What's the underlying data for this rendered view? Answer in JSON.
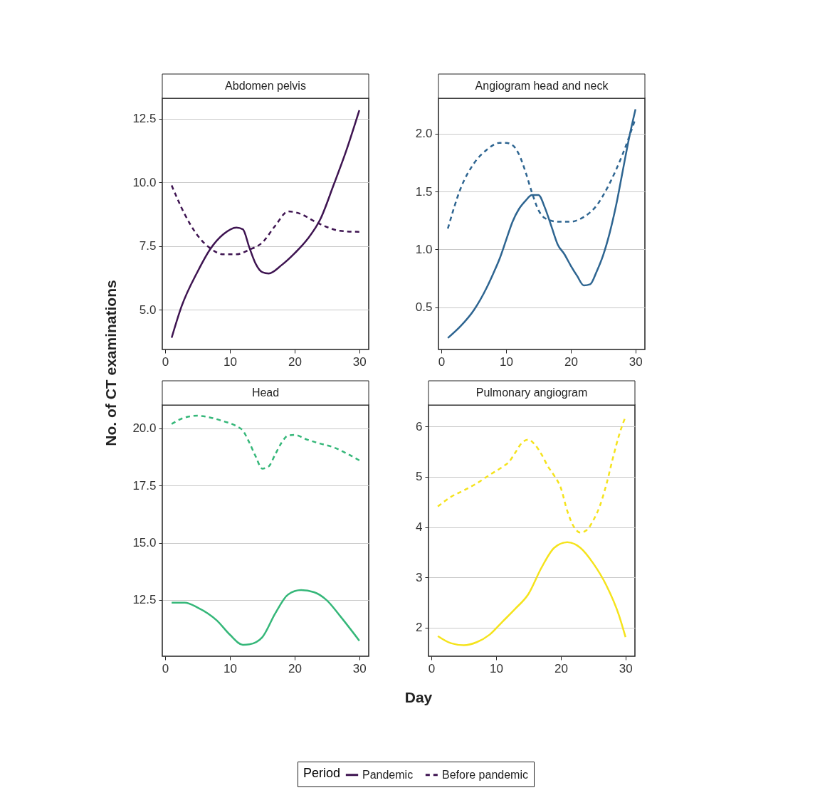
{
  "chart_data": [
    {
      "type": "line",
      "title": "Abdomen pelvis",
      "xlabel": "Day",
      "ylabel": "No. of CT examinations",
      "legend_title": "Period",
      "legend": "bottom",
      "grid": "y",
      "xlim": [
        -0.45,
        31.45
      ],
      "xticks": [
        0,
        10,
        20,
        30
      ],
      "ylim": [
        3.45,
        13.3
      ],
      "yticks": [
        {
          "value": 5,
          "label": "5.0"
        },
        7.5,
        {
          "value": 10,
          "label": "10.0"
        },
        12.5
      ],
      "series": [
        {
          "name": "Pandemic",
          "color": "#3e1451",
          "line_style": "solid",
          "x": [
            1,
            2.5,
            5,
            7,
            9,
            11,
            12,
            13,
            14,
            15,
            16,
            18,
            20,
            22,
            24,
            26,
            28,
            30
          ],
          "values": [
            3.91,
            5.12,
            6.5,
            7.4,
            7.97,
            8.23,
            8.16,
            7.45,
            6.8,
            6.48,
            6.43,
            6.76,
            7.22,
            7.78,
            8.57,
            9.88,
            11.26,
            12.83
          ]
        },
        {
          "name": "Before pandemic",
          "color": "#3e1451",
          "line_style": "dashed",
          "x": [
            1,
            3,
            5,
            7,
            9,
            11,
            13,
            15,
            17,
            19,
            21,
            23,
            25,
            27,
            30
          ],
          "values": [
            9.88,
            8.76,
            7.92,
            7.41,
            7.18,
            7.18,
            7.36,
            7.64,
            8.3,
            8.86,
            8.76,
            8.48,
            8.25,
            8.1,
            8.06
          ]
        }
      ]
    },
    {
      "type": "line",
      "title": "Angiogram head and neck",
      "grid": "y",
      "xlim": [
        -0.45,
        31.45
      ],
      "xticks": [
        0,
        10,
        20,
        30
      ],
      "ylim": [
        0.137,
        2.305
      ],
      "yticks": [
        {
          "value": 0.5,
          "label": "0.5"
        },
        {
          "value": 1,
          "label": "1.0"
        },
        {
          "value": 1.5,
          "label": "1.5"
        },
        {
          "value": 2,
          "label": "2.0"
        }
      ],
      "series": [
        {
          "color": "#2e6591",
          "line_style": "solid",
          "x": [
            1,
            3,
            5,
            7,
            8,
            9,
            10,
            11,
            12,
            13,
            14,
            15,
            16,
            17,
            18,
            19,
            20,
            21,
            22,
            23,
            24,
            25,
            26,
            27,
            28,
            29,
            30
          ],
          "values": [
            0.236,
            0.34,
            0.475,
            0.67,
            0.79,
            0.92,
            1.08,
            1.24,
            1.35,
            1.42,
            1.47,
            1.47,
            1.36,
            1.2,
            1.04,
            0.96,
            0.86,
            0.77,
            0.69,
            0.7,
            0.81,
            0.95,
            1.14,
            1.38,
            1.67,
            1.96,
            2.21
          ]
        },
        {
          "color": "#2e6591",
          "line_style": "dashed",
          "x": [
            1,
            3,
            5,
            7,
            9,
            10,
            11,
            12,
            13,
            14,
            15,
            16,
            18,
            20,
            22,
            24,
            26,
            28,
            30
          ],
          "values": [
            1.18,
            1.53,
            1.74,
            1.86,
            1.92,
            1.92,
            1.9,
            1.82,
            1.67,
            1.49,
            1.34,
            1.27,
            1.24,
            1.24,
            1.28,
            1.38,
            1.57,
            1.82,
            2.13
          ]
        }
      ]
    },
    {
      "type": "line",
      "title": "Head",
      "grid": "y",
      "xlim": [
        -0.45,
        31.45
      ],
      "xticks": [
        0,
        10,
        20,
        30
      ],
      "ylim": [
        10.04,
        21.02
      ],
      "yticks": [
        12.5,
        {
          "value": 15,
          "label": "15.0"
        },
        17.5,
        {
          "value": 20,
          "label": "20.0"
        }
      ],
      "series": [
        {
          "color": "#35b779",
          "line_style": "solid",
          "x": [
            1,
            3,
            5,
            8,
            10,
            12,
            13,
            15,
            17,
            19,
            21,
            23,
            25,
            27,
            30
          ],
          "values": [
            12.38,
            12.38,
            12.17,
            11.6,
            10.98,
            10.54,
            10.56,
            10.87,
            11.91,
            12.74,
            12.93,
            12.84,
            12.48,
            11.81,
            10.72
          ]
        },
        {
          "color": "#35b779",
          "line_style": "dashed",
          "x": [
            1,
            3,
            5,
            7,
            9,
            11,
            12,
            13,
            14,
            15,
            16,
            17,
            18,
            19,
            20,
            22,
            24,
            26,
            28,
            30
          ],
          "values": [
            20.19,
            20.47,
            20.55,
            20.47,
            20.31,
            20.1,
            19.9,
            19.38,
            18.76,
            18.24,
            18.34,
            18.86,
            19.38,
            19.69,
            19.71,
            19.5,
            19.33,
            19.17,
            18.91,
            18.6
          ]
        }
      ]
    },
    {
      "type": "line",
      "title": "Pulmonary angiogram",
      "grid": "y",
      "xlim": [
        -0.45,
        31.45
      ],
      "xticks": [
        0,
        10,
        20,
        30
      ],
      "ylim": [
        1.43,
        6.43
      ],
      "yticks": [
        2,
        3,
        4,
        5,
        6
      ],
      "series": [
        {
          "color": "#f5e31c",
          "line_style": "solid",
          "x": [
            1,
            3,
            5,
            7,
            9,
            11,
            13,
            15,
            17,
            19,
            21,
            23,
            25,
            27,
            29,
            30
          ],
          "values": [
            1.83,
            1.69,
            1.65,
            1.71,
            1.86,
            2.12,
            2.38,
            2.67,
            3.19,
            3.59,
            3.7,
            3.59,
            3.28,
            2.85,
            2.24,
            1.81
          ]
        },
        {
          "color": "#f5e31c",
          "line_style": "dashed",
          "x": [
            1,
            3,
            5,
            7,
            9,
            11,
            12,
            13,
            14,
            15,
            16,
            17,
            18,
            19,
            20,
            21,
            22,
            23,
            24,
            25,
            26,
            27,
            28,
            29,
            30
          ],
          "values": [
            4.41,
            4.6,
            4.73,
            4.87,
            5.04,
            5.2,
            5.3,
            5.49,
            5.68,
            5.74,
            5.64,
            5.45,
            5.21,
            5.02,
            4.78,
            4.32,
            4.01,
            3.89,
            3.94,
            4.13,
            4.41,
            4.83,
            5.35,
            5.83,
            6.2
          ]
        }
      ]
    }
  ]
}
